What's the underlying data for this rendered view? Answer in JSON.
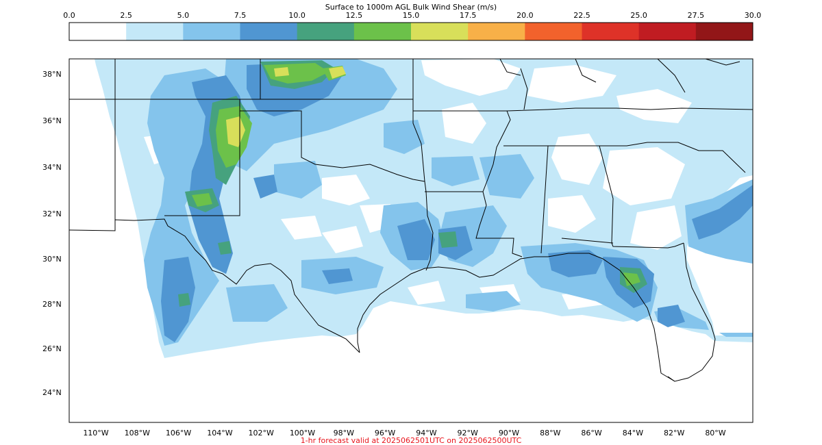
{
  "title": "Surface to 1000m AGL Bulk Wind Shear (m/s)",
  "caption": "1-hr forecast valid at 2025062501UTC on 2025062500UTC",
  "caption_color": "#e8141c",
  "colorbar": {
    "ticks": [
      "0.0",
      "2.5",
      "5.0",
      "7.5",
      "10.0",
      "12.5",
      "15.0",
      "17.5",
      "20.0",
      "22.5",
      "25.0",
      "27.5",
      "30.0"
    ],
    "colors": [
      "#ffffff",
      "#c4e8f8",
      "#84c4ec",
      "#5096d2",
      "#46a27e",
      "#6cc14a",
      "#d8df5a",
      "#f8b048",
      "#f2622c",
      "#de3228",
      "#c01c22",
      "#921618"
    ]
  },
  "lat_labels": [
    "38°N",
    "36°N",
    "34°N",
    "32°N",
    "30°N",
    "28°N",
    "26°N",
    "24°N"
  ],
  "lon_labels": [
    "110°W",
    "108°W",
    "106°W",
    "104°W",
    "102°W",
    "100°W",
    "98°W",
    "96°W",
    "94°W",
    "92°W",
    "90°W",
    "88°W",
    "86°W",
    "84°W",
    "82°W",
    "80°W"
  ]
}
